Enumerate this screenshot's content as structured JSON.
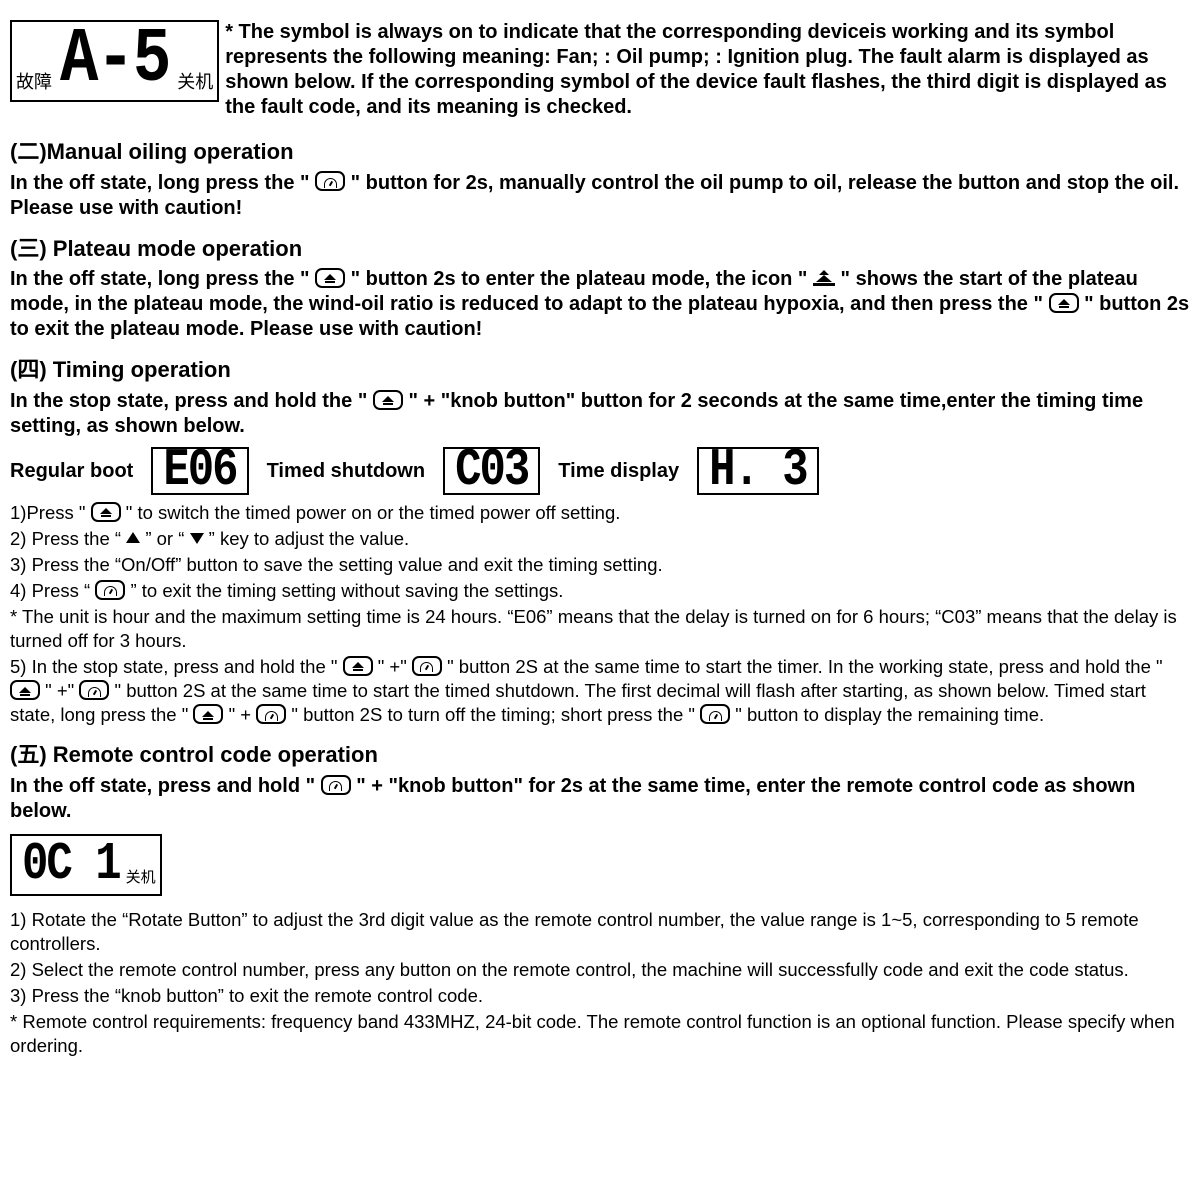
{
  "top": {
    "lcd_left_cn": "故障",
    "lcd_seg": "A-5",
    "lcd_right_cn": "关机",
    "para": "* The symbol is always on to indicate that the corresponding deviceis working and its symbol represents the following meaning: Fan; : Oil pump; : Ignition plug.   The fault alarm is displayed as shown below. If the corresponding symbol of the device fault flashes, the third digit is displayed as the fault code, and its meaning is checked."
  },
  "s2": {
    "h": "(二)Manual oiling operation",
    "p1a": "In the off state, long press the \" ",
    "p1b": " \" button for 2s, manually control the oil pump to oil, release the button and stop the oil. Please use with caution!"
  },
  "s3": {
    "h": "(三) Plateau mode operation",
    "p1a": "In the off state, long press the \"",
    "p1b": "\" button 2s to enter the plateau mode, the icon \" ",
    "p1c": " \" shows the start of the plateau mode, in the plateau mode, the wind-oil ratio is reduced to adapt to the plateau hypoxia, and then press the \"",
    "p1d": "\" button 2s to exit the plateau mode. Please use with caution!"
  },
  "s4": {
    "h": "(四) Timing operation",
    "p1a": "In the stop state, press and hold the \"",
    "p1b": "\" + \"knob button\" button for 2 seconds at the same time,enter the timing time setting, as shown below.",
    "lbl_boot": "Regular boot",
    "lcd_boot": "E06",
    "lbl_shut": "Timed shutdown",
    "lcd_shut": "C03",
    "lbl_time": "Time display",
    "lcd_time": "H.  3",
    "l1a": "1)Press \"",
    "l1b": "\" to switch the timed power on or the timed power off setting.",
    "l2a": "2) Press the “",
    "l2b": "” or “",
    "l2c": "” key to adjust the value.",
    "l3": "3) Press the “On/Off” button to save the setting value and exit the timing setting.",
    "l4a": "4) Press “",
    "l4b": "” to exit the timing setting without saving the settings.",
    "l5": "* The unit is hour and the maximum setting time is 24 hours. “E06” means that the delay is turned on for 6 hours; “C03” means that the delay is turned off for 3 hours.",
    "l6a": "5) In the stop state, press and hold the \"",
    "l6b": "\" +\"",
    "l6c": "\"  button 2S at the same time to start the timer. In the working state, press and hold the \"",
    "l6d": "\" +\"",
    "l6e": "\" button 2S at the same time to start the timed shutdown. The first decimal will flash after starting, as shown below. Timed start state, long press the \" ",
    "l6f": "\" +",
    "l6g": " \" button 2S to turn off the timing; short press the \" ",
    "l6h": " \" button to display the remaining time."
  },
  "s5": {
    "h": "(五) Remote control code operation",
    "p1a": "In the off state, press and hold \" ",
    "p1b": " \" + \"knob button\" for 2s at the same time, enter the remote control code as shown below.",
    "lcd_seg": "0C 1",
    "lcd_cn": "关机",
    "l1": "1) Rotate the “Rotate Button” to adjust the 3rd digit value as the remote control number, the value range is 1~5, corresponding to 5 remote controllers.",
    "l2": "2) Select the remote control number, press any button on the remote control, the machine will successfully code and exit the code status.",
    "l3": "3) Press the “knob button” to exit the remote control code.",
    "l4": "* Remote control requirements: frequency band 433MHZ, 24-bit code. The remote control function is an optional function. Please specify when ordering."
  }
}
